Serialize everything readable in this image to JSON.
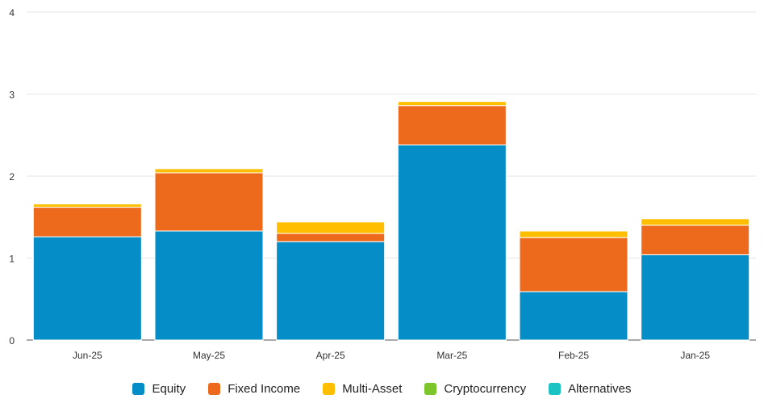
{
  "chart_data": {
    "type": "bar",
    "stacked": true,
    "categories": [
      "Jun-25",
      "May-25",
      "Apr-25",
      "Mar-25",
      "Feb-25",
      "Jan-25"
    ],
    "series": [
      {
        "name": "Equity",
        "color": "#058DC7",
        "values": [
          1.26,
          1.33,
          1.2,
          2.38,
          0.59,
          1.04
        ]
      },
      {
        "name": "Fixed Income",
        "color": "#ED6A1C",
        "values": [
          0.36,
          0.71,
          0.1,
          0.48,
          0.66,
          0.36
        ]
      },
      {
        "name": "Multi-Asset",
        "color": "#FFBF00",
        "values": [
          0.04,
          0.05,
          0.14,
          0.05,
          0.08,
          0.08
        ]
      },
      {
        "name": "Cryptocurrency",
        "color": "#7CC62B",
        "values": [
          0,
          0,
          0,
          0,
          0,
          0
        ]
      },
      {
        "name": "Alternatives",
        "color": "#1CC3C3",
        "values": [
          0,
          0,
          0,
          0,
          0,
          0
        ]
      }
    ],
    "ylim": [
      0,
      4
    ],
    "yticks": [
      0,
      1,
      2,
      3,
      4
    ],
    "title": "",
    "xlabel": "",
    "ylabel": "",
    "grid": true,
    "legend": "bottom-center"
  }
}
